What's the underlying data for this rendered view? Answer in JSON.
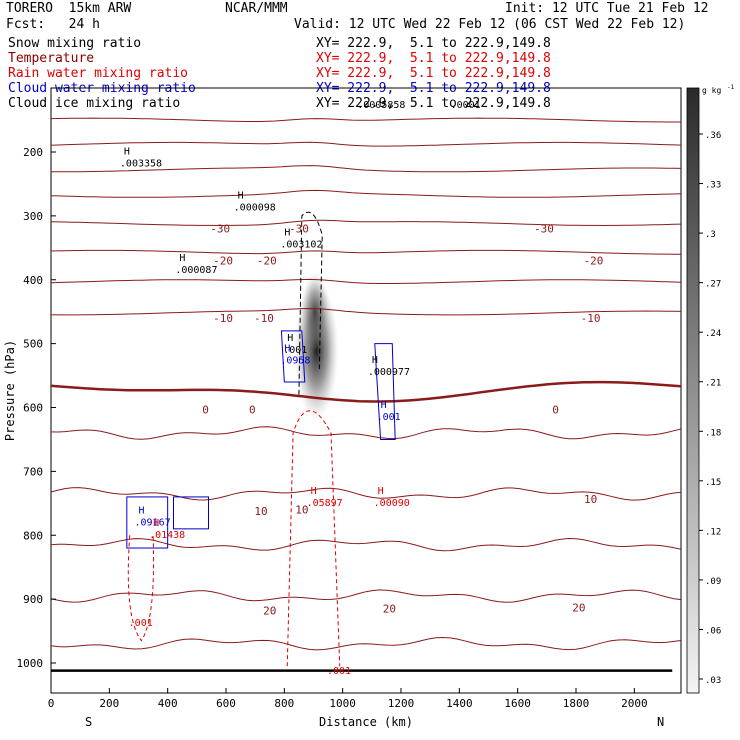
{
  "header": {
    "model": "TORERO  15km ARW",
    "center": "NCAR/MMM",
    "init": "Init: 12 UTC Tue 21 Feb 12",
    "fcst": "Fcst:   24 h",
    "valid": "Valid: 12 UTC Wed 22 Feb 12 (06 CST Wed 22 Feb 12)"
  },
  "legend": [
    {
      "label": "Snow mixing ratio",
      "xy": "XY= 222.9,  5.1 to 222.9,149.8",
      "color": "#000000"
    },
    {
      "label": "Temperature",
      "xy": "XY= 222.9,  5.1 to 222.9,149.8",
      "color": "#8b0000"
    },
    {
      "label": "Rain water mixing ratio",
      "xy": "XY= 222.9,  5.1 to 222.9,149.8",
      "color": "#e00000"
    },
    {
      "label": "Cloud water mixing ratio",
      "xy": "XY= 222.9,  5.1 to 222.9,149.8",
      "color": "#0000cc"
    },
    {
      "label": "Cloud ice mixing ratio",
      "xy": "XY= 222.9,  5.1 to 222.9,149.8",
      "color": "#000000"
    }
  ],
  "chart_data": {
    "type": "cross-section",
    "xlabel": "Distance (km)",
    "ylabel": "Pressure (hPa)",
    "x_ticks": [
      0,
      200,
      400,
      600,
      800,
      1000,
      1200,
      1400,
      1600,
      1800,
      2000
    ],
    "y_ticks": [
      200,
      300,
      400,
      500,
      600,
      700,
      800,
      900,
      1000
    ],
    "xlim": [
      0,
      2160
    ],
    "ylim": [
      1050,
      100
    ],
    "x_end_labels": {
      "left": "S",
      "right": "N"
    },
    "temperature_contours_C": [
      -40,
      -35,
      -30,
      -25,
      -20,
      -15,
      -10,
      -5,
      0,
      5,
      10,
      15,
      20,
      25
    ],
    "temperature_labels": [
      {
        "text": "-30",
        "x": 580,
        "p": 320
      },
      {
        "text": "-30",
        "x": 850,
        "p": 320
      },
      {
        "text": "-30",
        "x": 1690,
        "p": 320
      },
      {
        "text": "-20",
        "x": 590,
        "p": 370
      },
      {
        "text": "-20",
        "x": 740,
        "p": 370
      },
      {
        "text": "-20",
        "x": 1860,
        "p": 370
      },
      {
        "text": "-10",
        "x": 590,
        "p": 460
      },
      {
        "text": "-10",
        "x": 730,
        "p": 460
      },
      {
        "text": "-10",
        "x": 1850,
        "p": 460
      },
      {
        "text": "0",
        "x": 530,
        "p": 603
      },
      {
        "text": "0",
        "x": 690,
        "p": 603
      },
      {
        "text": "0",
        "x": 1730,
        "p": 603
      },
      {
        "text": "10",
        "x": 720,
        "p": 762
      },
      {
        "text": "10",
        "x": 860,
        "p": 760
      },
      {
        "text": "10",
        "x": 1850,
        "p": 743
      },
      {
        "text": "20",
        "x": 750,
        "p": 918
      },
      {
        "text": "20",
        "x": 1160,
        "p": 915
      },
      {
        "text": "20",
        "x": 1810,
        "p": 913
      }
    ],
    "maxima": [
      {
        "mark": "H",
        "value": ".003358",
        "x": 250,
        "p": 213,
        "field": "snow"
      },
      {
        "mark": "H",
        "value": ".000098",
        "x": 640,
        "p": 282,
        "field": "snow"
      },
      {
        "mark": "H",
        "value": ".003102",
        "x": 800,
        "p": 340,
        "field": "snow"
      },
      {
        "mark": "H",
        "value": ".000087",
        "x": 440,
        "p": 380,
        "field": "snow"
      },
      {
        "mark": "H",
        "value": ".001",
        "x": 810,
        "p": 505,
        "field": "ice"
      },
      {
        "mark": "H",
        "value": ".0958",
        "x": 800,
        "p": 522,
        "field": "cloud"
      },
      {
        "mark": "H",
        "value": ".000977",
        "x": 1100,
        "p": 540,
        "field": "snow"
      },
      {
        "mark": "H",
        "value": ".001",
        "x": 1130,
        "p": 610,
        "field": "cloud"
      },
      {
        "mark": "H",
        "value": ".05897",
        "x": 890,
        "p": 745,
        "field": "rain"
      },
      {
        "mark": "H",
        "value": ".00090",
        "x": 1120,
        "p": 745,
        "field": "rain"
      },
      {
        "mark": "H",
        "value": ".09167",
        "x": 300,
        "p": 775,
        "field": "cloud"
      },
      {
        "mark": "H",
        "value": ".01438",
        "x": 350,
        "p": 795,
        "field": "rain"
      },
      {
        "mark": "",
        "value": ".001",
        "x": 280,
        "p": 933,
        "field": "rain"
      },
      {
        "mark": "",
        "value": ".001",
        "x": 960,
        "p": 1008,
        "field": "rain"
      }
    ],
    "overlay_labels": [
      ".0005858",
      ".0001"
    ],
    "colorbar": {
      "unit": "g kg",
      "unit_exp": "-1",
      "ticks": [
        ".03",
        ".06",
        ".09",
        ".12",
        ".15",
        ".18",
        ".21",
        ".24",
        ".27",
        ".3",
        ".33",
        ".36"
      ]
    }
  }
}
